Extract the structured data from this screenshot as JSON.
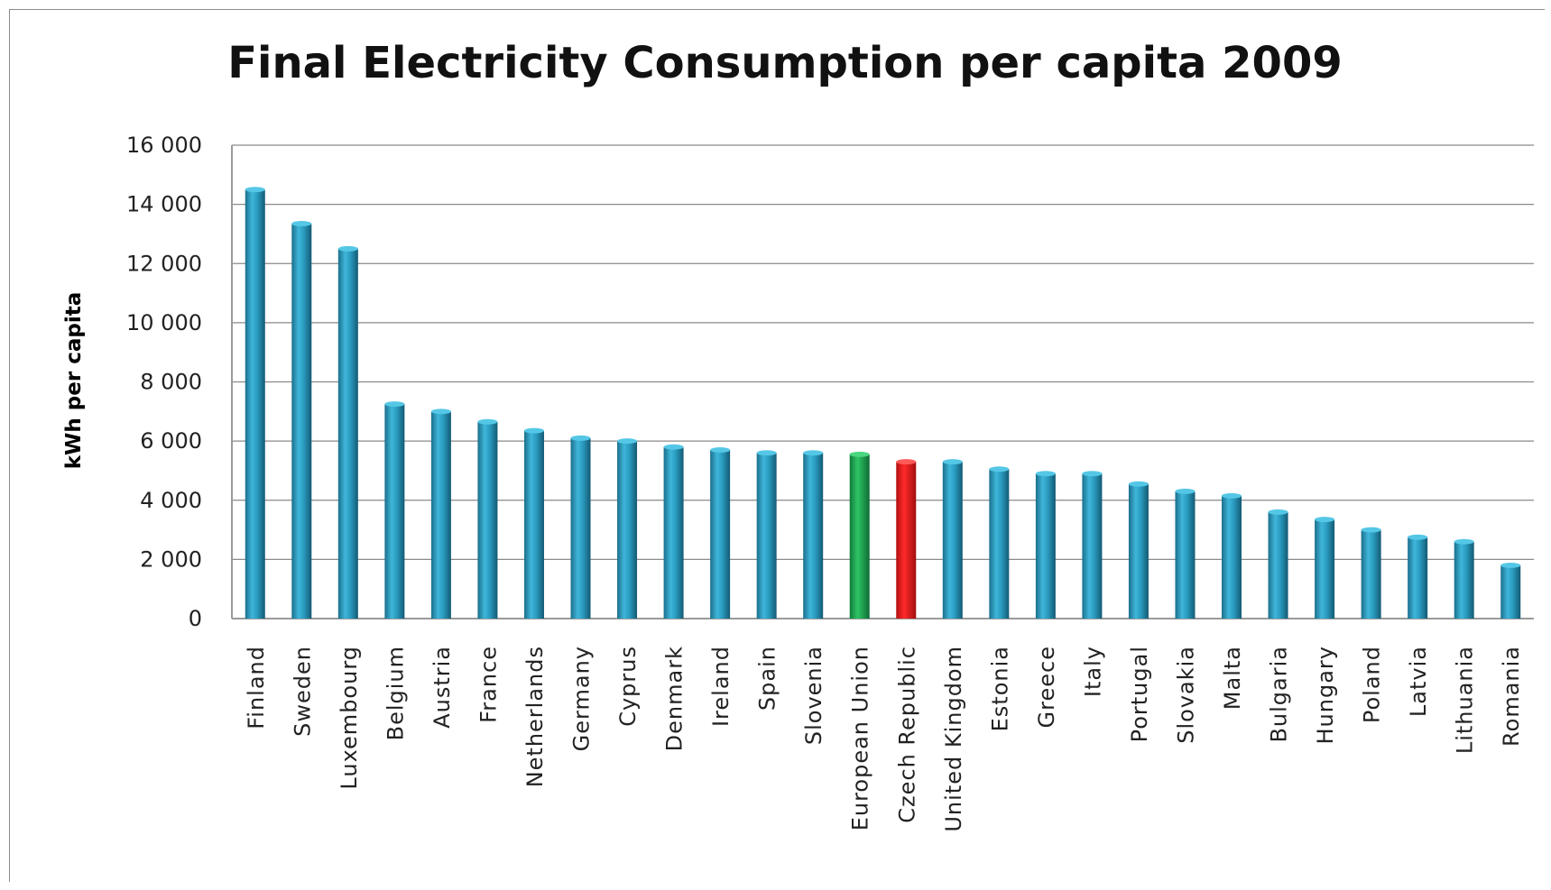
{
  "chart_data": {
    "type": "bar",
    "title": "Final Electricity Consumption per capita 2009",
    "xlabel": "",
    "ylabel": "kWh per capita",
    "ylim": [
      0,
      16000
    ],
    "yticks": [
      0,
      2000,
      4000,
      6000,
      8000,
      10000,
      12000,
      14000,
      16000
    ],
    "ytick_labels": [
      "0",
      "2 000",
      "4 000",
      "6 000",
      "8 000",
      "10 000",
      "12 000",
      "14 000",
      "16 000"
    ],
    "grid": true,
    "legend": "none",
    "categories": [
      "Finland",
      "Sweden",
      "Luxembourg",
      "Belgium",
      "Austria",
      "France",
      "Netherlands",
      "Germany",
      "Cyprus",
      "Denmark",
      "Ireland",
      "Spain",
      "Slovenia",
      "European Union",
      "Czech Republic",
      "United Kingdom",
      "Estonia",
      "Greece",
      "Italy",
      "Portugal",
      "Slovakia",
      "Malta",
      "Bulgaria",
      "Hungary",
      "Poland",
      "Latvia",
      "Lithuania",
      "Romania"
    ],
    "values": [
      14500,
      13350,
      12500,
      7250,
      7000,
      6650,
      6350,
      6100,
      6000,
      5800,
      5700,
      5600,
      5600,
      5550,
      5300,
      5300,
      5050,
      4900,
      4900,
      4550,
      4300,
      4150,
      3600,
      3350,
      3000,
      2750,
      2600,
      1800
    ],
    "colors": {
      "default": "#2a9cc0",
      "European Union": "#1eaa52",
      "Czech Republic": "#e81c1c"
    }
  }
}
